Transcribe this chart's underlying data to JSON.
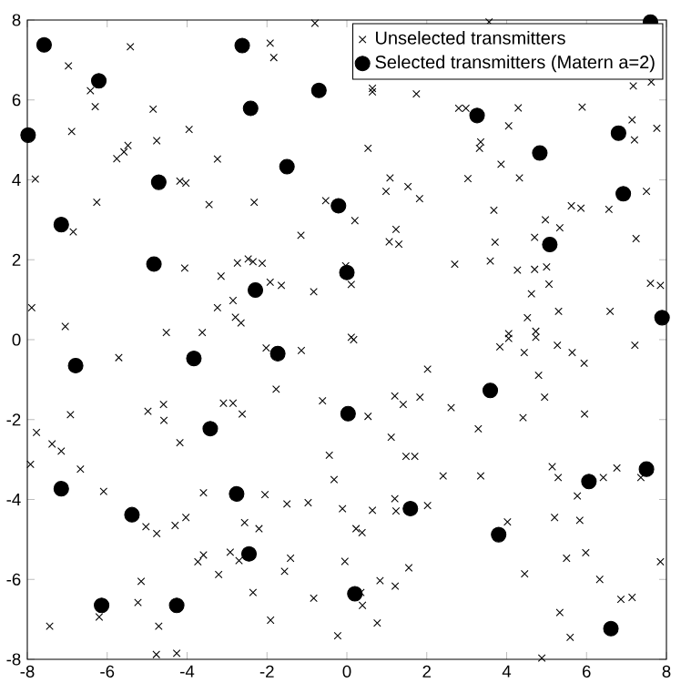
{
  "chart_data": {
    "type": "scatter",
    "xlim": [
      -8,
      8
    ],
    "ylim": [
      -8,
      8
    ],
    "xticks": [
      -8,
      -6,
      -4,
      -2,
      0,
      2,
      4,
      6,
      8
    ],
    "yticks": [
      -8,
      -6,
      -4,
      -2,
      0,
      2,
      4,
      6,
      8
    ],
    "grid": false,
    "legend": "top right",
    "series": [
      {
        "name": "Unselected transmitters",
        "color": "#000000",
        "marker": "cross",
        "x": [
          -6.97,
          -5.42,
          -6.42,
          -6.3,
          -6.89,
          -7.8,
          -5.76,
          -5.58,
          -5.48,
          -4.85,
          -4.76,
          -3.95,
          -4.18,
          -4.03,
          -3.24,
          -6.26,
          -6.85,
          -3.45,
          -2.32,
          -1.92,
          -1.83,
          -0.8,
          -4.06,
          -3.15,
          -2.74,
          -2.47,
          -2.35,
          -2.12,
          -1.92,
          -1.64,
          -1.15,
          -0.83,
          -0.53,
          -2.85,
          -3.24,
          -2.79,
          -2.65,
          -7.89,
          -7.05,
          -4.52,
          -3.62,
          3.56,
          0.64,
          0.64,
          1.74,
          2.8,
          2.98,
          4.29,
          4.05,
          5.89,
          7.17,
          7.62,
          7.14,
          7.76,
          7.2,
          3.35,
          3.32,
          0.53,
          3.86,
          1.08,
          0.98,
          1.53,
          1.82,
          3.03,
          4.32,
          3.68,
          5.62,
          5.86,
          6.56,
          7.5,
          0.2,
          1.23,
          1.06,
          1.3,
          4.97,
          5.33,
          3.71,
          4.7,
          7.24,
          -0.03,
          0.11,
          2.7,
          3.59,
          4.27,
          4.7,
          5.0,
          4.62,
          5.06,
          7.6,
          7.85,
          4.52,
          5.3,
          6.59,
          4.73,
          4.05,
          0.11,
          -5.71,
          -2.02,
          -1.14,
          -1.77,
          -0.61,
          -6.92,
          -7.77,
          -7.38,
          -7.15,
          -7.92,
          -6.67,
          -4.98,
          -4.59,
          -4.58,
          -3.09,
          -2.85,
          -2.62,
          -4.18,
          -0.44,
          -0.32,
          -6.09,
          -3.59,
          -2.05,
          -1.5,
          -0.97,
          -0.11,
          -5.03,
          -4.76,
          -4.3,
          -4.03,
          -2.56,
          -2.2,
          -3.59,
          -3.73,
          -2.92,
          -2.7,
          -3.21,
          -1.56,
          -1.41,
          -0.05,
          -5.15,
          -5.23,
          -2.35,
          -0.83,
          -6.2,
          -1.91,
          -7.44,
          -4.71,
          -0.23,
          -4.77,
          -4.26,
          0.17,
          3.83,
          4.05,
          4.44,
          4.73,
          5.27,
          5.64,
          5.94,
          7.21,
          2.02,
          4.8,
          1.2,
          1.41,
          1.83,
          0.53,
          2.61,
          4.95,
          4.41,
          5.95,
          3.29,
          1.11,
          1.48,
          1.7,
          2.41,
          3.35,
          5.14,
          5.29,
          6.42,
          6.76,
          7.36,
          5.77,
          1.2,
          1.23,
          0.64,
          2.02,
          4.02,
          5.2,
          5.83,
          0.23,
          0.38,
          1.55,
          5.5,
          5.98,
          7.85,
          4.45,
          0.83,
          1.21,
          6.33,
          0.35,
          0.39,
          6.86,
          7.14,
          0.76,
          5.33,
          5.59,
          4.88
        ],
        "values": [
          6.85,
          7.33,
          6.23,
          5.83,
          5.21,
          4.02,
          4.53,
          4.7,
          4.86,
          5.77,
          4.98,
          5.26,
          3.97,
          3.92,
          4.52,
          3.44,
          2.7,
          3.38,
          3.44,
          7.42,
          7.06,
          7.92,
          1.79,
          1.59,
          1.92,
          2.02,
          1.95,
          1.91,
          1.44,
          1.36,
          2.61,
          1.2,
          3.48,
          0.98,
          0.8,
          0.56,
          0.42,
          0.8,
          0.33,
          0.18,
          0.18,
          7.95,
          6.29,
          6.2,
          6.15,
          5.79,
          5.79,
          5.8,
          5.35,
          5.82,
          6.35,
          6.45,
          5.5,
          5.29,
          5.0,
          4.95,
          4.79,
          4.79,
          4.39,
          4.05,
          3.71,
          3.83,
          3.53,
          4.03,
          4.05,
          3.24,
          3.35,
          3.29,
          3.26,
          3.71,
          2.98,
          2.76,
          2.45,
          2.39,
          3.0,
          2.8,
          2.44,
          2.56,
          2.53,
          1.85,
          1.38,
          1.89,
          1.97,
          1.74,
          1.76,
          1.82,
          1.15,
          1.39,
          1.41,
          1.36,
          0.55,
          0.71,
          0.71,
          0.21,
          0.15,
          0.06,
          -0.45,
          -0.21,
          -0.27,
          -1.24,
          -1.53,
          -1.88,
          -2.32,
          -2.61,
          -2.79,
          -3.12,
          -3.24,
          -1.79,
          -1.62,
          -2.02,
          -1.59,
          -1.59,
          -1.86,
          -2.58,
          -2.89,
          -3.5,
          -3.8,
          -3.83,
          -3.88,
          -4.11,
          -4.08,
          -4.23,
          -4.68,
          -4.85,
          -4.65,
          -4.45,
          -4.58,
          -4.73,
          -5.39,
          -5.56,
          -5.32,
          -5.53,
          -5.88,
          -5.8,
          -5.47,
          -5.55,
          -6.05,
          -6.58,
          -6.33,
          -6.47,
          -6.94,
          -7.02,
          -7.17,
          -7.17,
          -7.41,
          -7.88,
          -7.85,
          0.0,
          -0.18,
          0.03,
          -0.32,
          0.06,
          -0.14,
          -0.32,
          -0.59,
          -0.14,
          -0.74,
          -0.89,
          -1.41,
          -1.62,
          -1.44,
          -1.92,
          -1.7,
          -1.44,
          -1.95,
          -1.86,
          -2.23,
          -2.44,
          -2.92,
          -2.92,
          -3.41,
          -3.41,
          -3.18,
          -3.45,
          -3.45,
          -3.21,
          -3.45,
          -3.91,
          -3.98,
          -4.29,
          -4.27,
          -4.15,
          -4.56,
          -4.45,
          -4.52,
          -4.73,
          -4.83,
          -5.71,
          -5.47,
          -5.33,
          -5.56,
          -5.86,
          -6.03,
          -6.17,
          -6.0,
          -6.33,
          -6.65,
          -6.5,
          -6.45,
          -7.09,
          -6.83,
          -7.45,
          -7.97
        ]
      },
      {
        "name": "Selected transmitters (Matern a=2)",
        "color": "#000000",
        "marker": "circle",
        "x": [
          -7.58,
          -6.21,
          -7.98,
          -2.62,
          -2.41,
          -1.5,
          -4.71,
          -7.15,
          -4.83,
          -2.29,
          -0.7,
          -0.21,
          0.0,
          3.26,
          4.83,
          6.8,
          6.92,
          5.08,
          7.89,
          7.6,
          -6.79,
          -3.83,
          -1.73,
          -3.42,
          -7.15,
          -2.76,
          -5.38,
          -2.45,
          -6.14,
          -4.26,
          0.03,
          3.59,
          6.06,
          7.5,
          1.59,
          3.8,
          0.2,
          6.61
        ],
        "values": [
          7.38,
          6.48,
          5.12,
          7.36,
          5.79,
          4.33,
          3.94,
          2.88,
          1.89,
          1.24,
          6.24,
          3.35,
          1.68,
          5.61,
          4.67,
          5.17,
          3.65,
          2.38,
          0.55,
          7.95,
          -0.65,
          -0.47,
          -0.35,
          -2.23,
          -3.73,
          -3.86,
          -4.38,
          -5.36,
          -6.65,
          -6.65,
          -1.85,
          -1.27,
          -3.55,
          -3.24,
          -4.23,
          -4.88,
          -6.36,
          -7.23
        ]
      }
    ]
  }
}
